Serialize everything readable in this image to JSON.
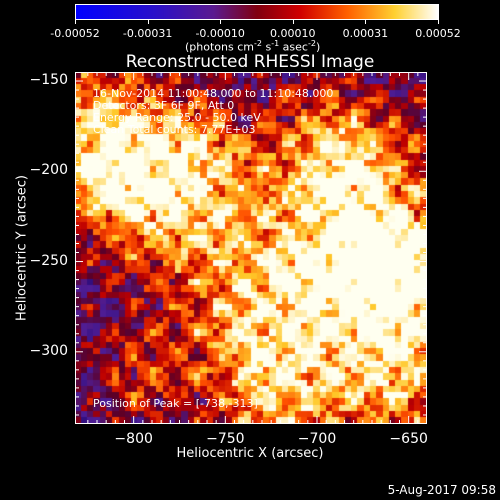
{
  "colorbar": {
    "ticks": [
      "-0.00052",
      "-0.00031",
      "-0.00010",
      "0.00010",
      "0.00031",
      "0.00052"
    ],
    "units_prefix": "(photons cm",
    "units_exp1": "-2",
    "units_mid": " s",
    "units_exp2": "-1",
    "units_mid2": " asec",
    "units_exp3": "-2",
    "units_suffix": ")"
  },
  "title": "Reconstructed RHESSI Image",
  "annotations": {
    "time": "16-Nov-2014 11:00:48.000 to 11:10:48.000",
    "detectors": "Detectors: 3F 6F 9F, Att 0",
    "energy": "Energy Range: 25.0 - 50.0 keV",
    "clean": "Clean     Total counts: 7.77E+03",
    "peak": "Position of Peak = [-738,-313]"
  },
  "footer": "5-Aug-2017 09:58",
  "chart_data": {
    "type": "heatmap",
    "title": "Reconstructed RHESSI Image",
    "xlabel": "Heliocentric X (arcsec)",
    "ylabel": "Heliocentric Y (arcsec)",
    "x_ticks": [
      "−800",
      "−750",
      "−700",
      "−650"
    ],
    "x_tick_values": [
      -800,
      -750,
      -700,
      -650
    ],
    "y_ticks": [
      "−150",
      "−200",
      "−250",
      "−300"
    ],
    "y_tick_values": [
      -150,
      -200,
      -250,
      -300
    ],
    "xlim": [
      -832,
      -640
    ],
    "ylim": [
      -340,
      -145
    ],
    "color_range": [
      -0.00052,
      0.00052
    ],
    "colormap": "blue-purple-red-yellow-white",
    "peak": [
      -738,
      -313
    ],
    "grid": false
  }
}
